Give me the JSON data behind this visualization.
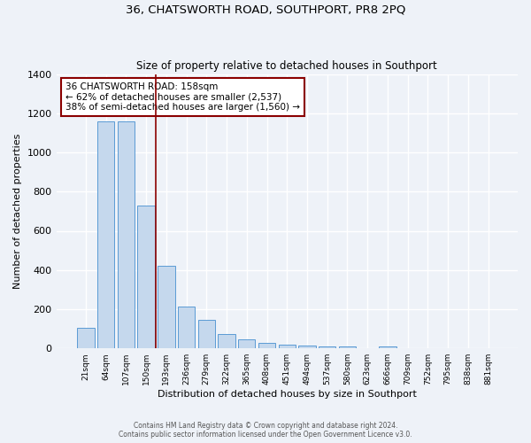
{
  "title": "36, CHATSWORTH ROAD, SOUTHPORT, PR8 2PQ",
  "subtitle": "Size of property relative to detached houses in Southport",
  "xlabel": "Distribution of detached houses by size in Southport",
  "ylabel": "Number of detached properties",
  "bar_labels": [
    "21sqm",
    "64sqm",
    "107sqm",
    "150sqm",
    "193sqm",
    "236sqm",
    "279sqm",
    "322sqm",
    "365sqm",
    "408sqm",
    "451sqm",
    "494sqm",
    "537sqm",
    "580sqm",
    "623sqm",
    "666sqm",
    "709sqm",
    "752sqm",
    "795sqm",
    "838sqm",
    "881sqm"
  ],
  "bar_values": [
    107,
    1160,
    1160,
    730,
    420,
    215,
    145,
    75,
    48,
    30,
    20,
    15,
    12,
    10,
    0,
    10,
    0,
    0,
    0,
    0,
    0
  ],
  "bar_color": "#c5d8ed",
  "bar_edge_color": "#5b9bd5",
  "vline_color": "#8b0000",
  "annotation_text": "36 CHATSWORTH ROAD: 158sqm\n← 62% of detached houses are smaller (2,537)\n38% of semi-detached houses are larger (1,560) →",
  "annotation_box_color": "#ffffff",
  "annotation_box_edge": "#8b0000",
  "ylim": [
    0,
    1400
  ],
  "yticks": [
    0,
    200,
    400,
    600,
    800,
    1000,
    1200,
    1400
  ],
  "footer_line1": "Contains HM Land Registry data © Crown copyright and database right 2024.",
  "footer_line2": "Contains public sector information licensed under the Open Government Licence v3.0.",
  "bg_color": "#eef2f8",
  "plot_bg_color": "#eef2f8"
}
